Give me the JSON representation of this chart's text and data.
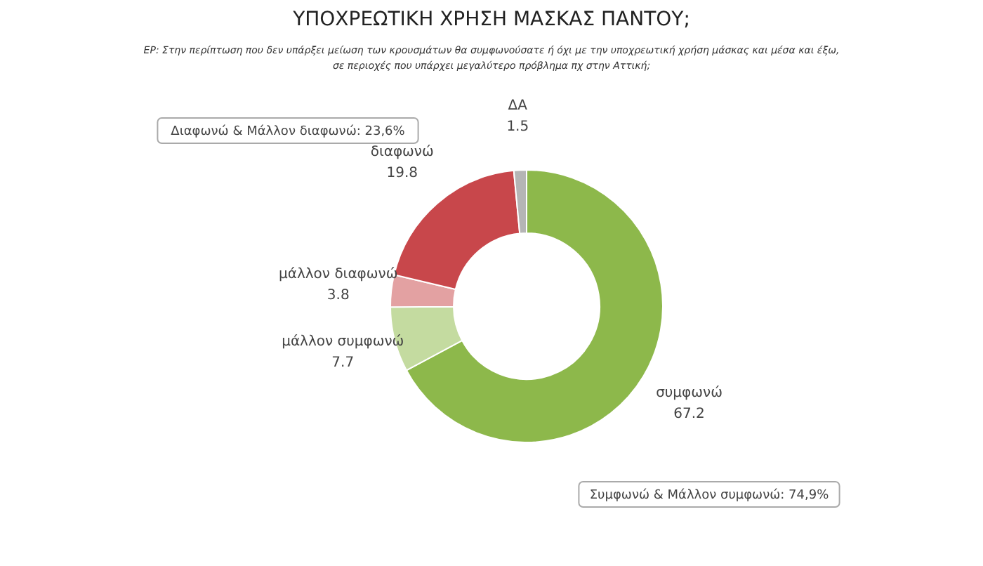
{
  "chart_data": {
    "type": "donut",
    "title": "ΥΠΟΧΡΕΩΤΙΚΗ ΧΡΗΣΗ ΜΑΣΚΑΣ ΠΑΝΤΟΥ;",
    "subtitle": "ΕΡ: Στην περίπτωση που δεν υπάρξει μείωση των κρουσμάτων θα συμφωνούσατε ή όχι με την υποχρεωτική χρήση μάσκας και μέσα και έξω, σε περιοχές που υπάρχει μεγαλύτερο πρόβλημα πχ στην Αττική;",
    "categories": [
      "συμφωνώ",
      "μάλλον συμφωνώ",
      "μάλλον διαφωνώ",
      "διαφωνώ",
      "ΔΑ"
    ],
    "values": [
      67.2,
      7.7,
      3.8,
      19.8,
      1.5
    ],
    "colors": [
      "#8db84b",
      "#c4dba0",
      "#e3a1a2",
      "#c8474b",
      "#b5b5b5"
    ],
    "data_labels": true,
    "annotations": [
      "Διαφωνώ & Μάλλον διαφωνώ: 23,6%",
      "Συμφωνώ & Μάλλον συμφωνώ: 74,9%"
    ]
  }
}
